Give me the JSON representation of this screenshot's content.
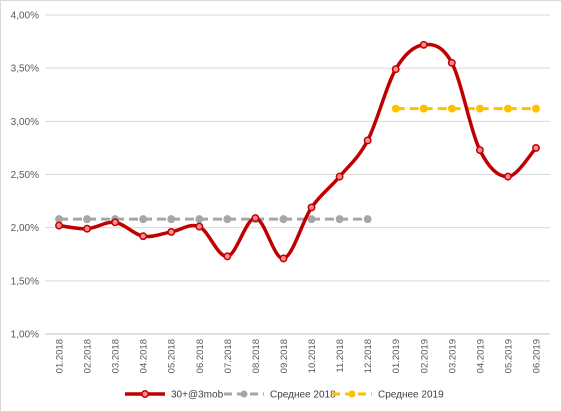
{
  "chart_data": {
    "type": "line",
    "categories": [
      "01.2018",
      "02.2018",
      "03.2018",
      "04.2018",
      "05.2018",
      "06.2018",
      "07.2018",
      "08.2018",
      "09.2018",
      "10.2018",
      "11.2018",
      "12.2018",
      "01.2019",
      "02.2019",
      "03.2019",
      "04.2019",
      "05.2019",
      "06.2019"
    ],
    "ylim": [
      1.0,
      4.0
    ],
    "yticks": [
      "1,00%",
      "1,50%",
      "2,00%",
      "2,50%",
      "3,00%",
      "3,50%",
      "4,00%"
    ],
    "ytick_values": [
      1.0,
      1.5,
      2.0,
      2.5,
      3.0,
      3.5,
      4.0
    ],
    "grid": "horizontal",
    "legend_position": "bottom",
    "series": [
      {
        "name": "30+@3mob",
        "style": "smooth-solid",
        "color": "#c00000",
        "values": [
          2.02,
          1.99,
          2.05,
          1.92,
          1.96,
          2.01,
          1.73,
          2.09,
          1.71,
          2.19,
          2.48,
          2.82,
          3.49,
          3.72,
          3.55,
          2.73,
          2.48,
          2.75
        ]
      },
      {
        "name": "Среднее 2018",
        "style": "dashed",
        "color": "#a6a6a6",
        "values": [
          2.08,
          2.08,
          2.08,
          2.08,
          2.08,
          2.08,
          2.08,
          2.08,
          2.08,
          2.08,
          2.08,
          2.08,
          null,
          null,
          null,
          null,
          null,
          null
        ]
      },
      {
        "name": "Среднее 2019",
        "style": "dashed",
        "color": "#ffc000",
        "values": [
          null,
          null,
          null,
          null,
          null,
          null,
          null,
          null,
          null,
          null,
          null,
          null,
          3.12,
          3.12,
          3.12,
          3.12,
          3.12,
          3.12
        ]
      }
    ]
  }
}
